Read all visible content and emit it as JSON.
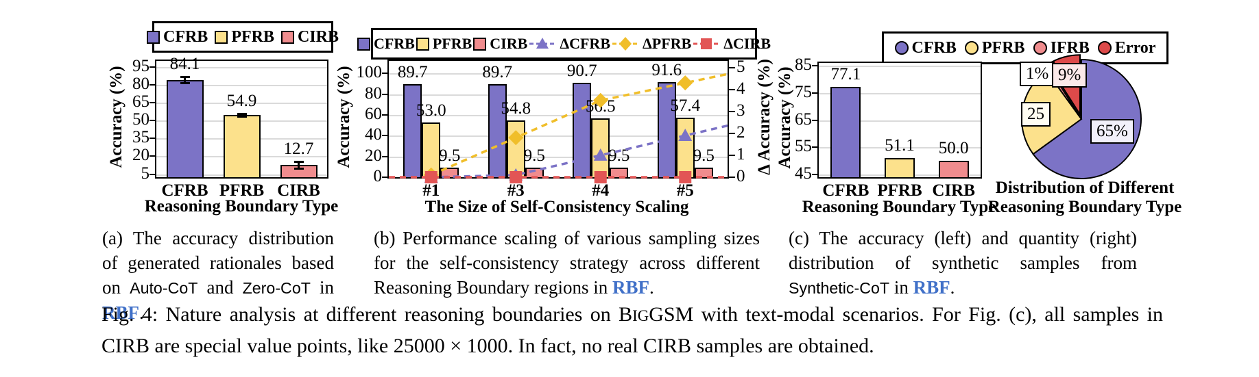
{
  "figure_label": "Fig. 4",
  "accent_colors": {
    "cfrb_purple": "#7C73C6",
    "pfrb_yellow": "#FCE18C",
    "cirb_pink": "#F08C8E",
    "error_red": "#DD4A4A",
    "delta_gold": "#F0BE2A",
    "delta_red": "#E25555",
    "rbf_blue": "#4070C8",
    "gridline_gray": "#DADADA"
  },
  "chart_data": [
    {
      "id": "a",
      "type": "bar",
      "categories": [
        "CFRB",
        "PFRB",
        "CIRB"
      ],
      "values": [
        84.1,
        54.9,
        12.7
      ],
      "labels": [
        "84.1",
        "54.9",
        "12.7"
      ],
      "errors": [
        2.5,
        1.2,
        2.8
      ],
      "colors": [
        "#7C73C6",
        "#FCE18C",
        "#F08C8E"
      ],
      "xlabel": "Reasoning Boundary Type",
      "ylabel": "Accuracy (%)",
      "yticks": [
        5,
        20,
        35,
        50,
        65,
        80,
        95
      ],
      "ylim": [
        2.5,
        100
      ],
      "grid": true,
      "legend_position": "top",
      "legend": [
        {
          "label": "CFRB",
          "color": "#7C73C6",
          "shape": "square"
        },
        {
          "label": "PFRB",
          "color": "#FCE18C",
          "shape": "square"
        },
        {
          "label": "CIRB",
          "color": "#F08C8E",
          "shape": "square"
        }
      ]
    },
    {
      "id": "b",
      "type": "bar-line",
      "categories": [
        "#1",
        "#3",
        "#4",
        "#5"
      ],
      "series": [
        {
          "name": "CFRB",
          "type": "bar",
          "values": [
            89.7,
            89.7,
            90.7,
            91.6
          ],
          "labels": [
            "89.7",
            "89.7",
            "90.7",
            "91.6"
          ],
          "color": "#7C73C6"
        },
        {
          "name": "PFRB",
          "type": "bar",
          "values": [
            53.0,
            54.8,
            56.5,
            57.4
          ],
          "labels": [
            "53.0",
            "54.8",
            "56.5",
            "57.4"
          ],
          "color": "#FCE18C"
        },
        {
          "name": "CIRB",
          "type": "bar",
          "values": [
            9.5,
            9.5,
            9.5,
            9.5
          ],
          "labels": [
            "9.5",
            "9.5",
            "9.5",
            "9.5"
          ],
          "color": "#F08C8E"
        },
        {
          "name": "ΔCFRB",
          "type": "line",
          "axis": "secondary",
          "values": [
            0,
            0.1,
            1.0,
            1.9
          ],
          "color": "#7C73C6",
          "marker": "triangle"
        },
        {
          "name": "ΔPFRB",
          "type": "line",
          "axis": "secondary",
          "values": [
            0.1,
            1.8,
            3.5,
            4.3
          ],
          "color": "#F0BE2A",
          "marker": "diamond"
        },
        {
          "name": "ΔCIRB",
          "type": "line",
          "axis": "secondary",
          "values": [
            0,
            0,
            0,
            0
          ],
          "color": "#E25555",
          "marker": "square"
        }
      ],
      "xlabel": "The Size of Self-Consistency Scaling",
      "ylabel": "Accuracy (%)",
      "ylabel2": "Δ Accuracy (%)",
      "yticks": [
        0,
        20,
        40,
        60,
        80,
        100
      ],
      "ylim": [
        0,
        112
      ],
      "y2ticks": [
        0,
        1,
        2,
        3,
        4,
        5
      ],
      "y2lim": [
        0,
        5.3
      ],
      "grid": true,
      "legend_position": "top",
      "legend": [
        {
          "label": "CFRB",
          "color": "#7C73C6",
          "shape": "square"
        },
        {
          "label": "PFRB",
          "color": "#FCE18C",
          "shape": "square"
        },
        {
          "label": "CIRB",
          "color": "#F08C8E",
          "shape": "square"
        },
        {
          "label": "ΔCFRB",
          "color": "#7C73C6",
          "shape": "line-triangle"
        },
        {
          "label": "ΔPFRB",
          "color": "#F0BE2A",
          "shape": "line-diamond"
        },
        {
          "label": "ΔCIRB",
          "color": "#E25555",
          "shape": "line-square"
        }
      ]
    },
    {
      "id": "c_bar",
      "type": "bar",
      "categories": [
        "CFRB",
        "PFRB",
        "CIRB"
      ],
      "values": [
        77.1,
        51.1,
        50.0
      ],
      "labels": [
        "77.1",
        "51.1",
        "50.0"
      ],
      "colors": [
        "#7C73C6",
        "#FCE18C",
        "#F08C8E"
      ],
      "xlabel": "Reasoning Boundary Type",
      "ylabel": "Accuracy (%)",
      "yticks": [
        45,
        55,
        65,
        75,
        85
      ],
      "ylim": [
        44,
        86
      ],
      "grid": true,
      "legend_position": "top",
      "legend": [
        {
          "label": "CFRB",
          "color": "#7C73C6",
          "shape": "circle"
        },
        {
          "label": "PFRB",
          "color": "#FCE18C",
          "shape": "circle"
        },
        {
          "label": "IFRB",
          "color": "#F08C8E",
          "shape": "circle"
        },
        {
          "label": "Error",
          "color": "#DD4A4A",
          "shape": "circle"
        }
      ]
    },
    {
      "id": "c_pie",
      "type": "pie",
      "title_line1": "Distribution of Different",
      "title_line2": "Reasoning Boundary Type",
      "slices": [
        {
          "label": "CFRB",
          "value": 65,
          "display": "65%",
          "color": "#7C73C6",
          "explode": false
        },
        {
          "label": "PFRB",
          "value": 25,
          "display": "25",
          "color": "#FCE18C",
          "explode": false
        },
        {
          "label": "IFRB",
          "value": 1,
          "display": "1%",
          "color": "#F08C8E",
          "explode": false
        },
        {
          "label": "Error",
          "value": 9,
          "display": "9%",
          "color": "#DD4A4A",
          "explode": true
        }
      ]
    }
  ],
  "captions": {
    "a": [
      {
        "text": "(a) The accuracy distribution of generated rationales based on ",
        "style": "serif"
      },
      {
        "text": "Auto-CoT",
        "style": "code"
      },
      {
        "text": " and ",
        "style": "serif"
      },
      {
        "text": "Zero-CoT",
        "style": "code"
      },
      {
        "text": " in ",
        "style": "serif"
      },
      {
        "text": "RBF",
        "style": "rbf"
      },
      {
        "text": ".",
        "style": "serif"
      }
    ],
    "b": [
      {
        "text": "(b) Performance scaling of various sampling sizes for the self-consistency strategy across different Reasoning Boundary regions in ",
        "style": "serif"
      },
      {
        "text": "RBF",
        "style": "rbf"
      },
      {
        "text": ".",
        "style": "serif"
      }
    ],
    "c": [
      {
        "text": "(c) The accuracy (left) and quantity (right) distribution of synthetic samples from ",
        "style": "serif"
      },
      {
        "text": "Synthetic-CoT",
        "style": "code"
      },
      {
        "text": " in ",
        "style": "serif"
      },
      {
        "text": "RBF",
        "style": "rbf"
      },
      {
        "text": ".",
        "style": "serif"
      }
    ],
    "main": [
      {
        "text": "Fig. 4: Nature analysis at different reasoning boundaries on B",
        "style": "serif"
      },
      {
        "text": "IG",
        "style": "smallcaps"
      },
      {
        "text": "GSM with text-modal scenarios. For Fig. (c), all samples in CIRB are special value points, like 25000 × 1000. In fact, no real CIRB samples are obtained.",
        "style": "serif"
      }
    ]
  }
}
